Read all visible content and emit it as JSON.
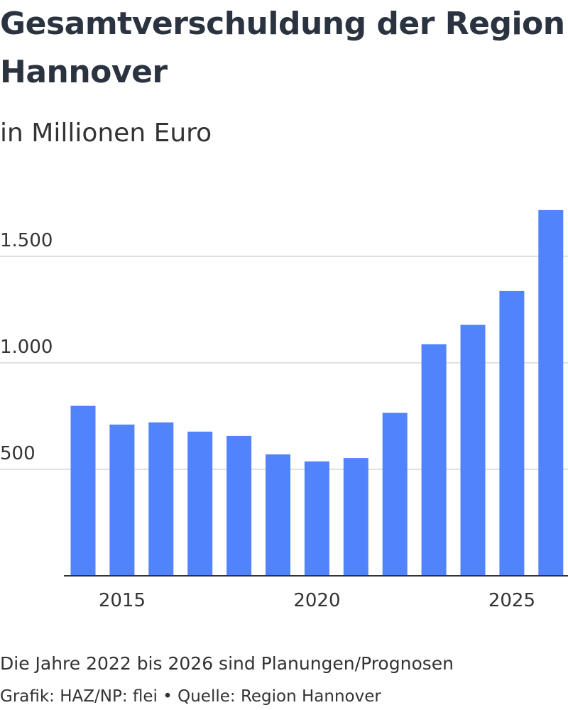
{
  "title": "Gesamtverschuldung der Region Hannover",
  "subtitle": "in Millionen Euro",
  "footnote": "Die Jahre 2022 bis 2026 sind Planungen/Prognosen",
  "credit": "Grafik: HAZ/NP: flei • Quelle: Region Hannover",
  "colors": {
    "bar": "#5083fc",
    "grid": "#e0e0e0",
    "axis": "#333333"
  },
  "chart_data": {
    "type": "bar",
    "x": [
      2014,
      2015,
      2016,
      2017,
      2018,
      2019,
      2020,
      2021,
      2022,
      2023,
      2024,
      2025,
      2026
    ],
    "values": [
      798,
      710,
      720,
      677,
      657,
      570,
      537,
      553,
      765,
      1087,
      1178,
      1337,
      1717
    ],
    "x_ticks": [
      2015,
      2020,
      2025
    ],
    "x_tick_labels": [
      "2015",
      "2020",
      "2025"
    ],
    "y_ticks": [
      500,
      1000,
      1500
    ],
    "y_tick_labels": [
      "500",
      "1.000",
      "1.500"
    ],
    "ylim": [
      0,
      1750
    ],
    "grid": true,
    "legend": false,
    "xlabel": "",
    "ylabel": ""
  }
}
